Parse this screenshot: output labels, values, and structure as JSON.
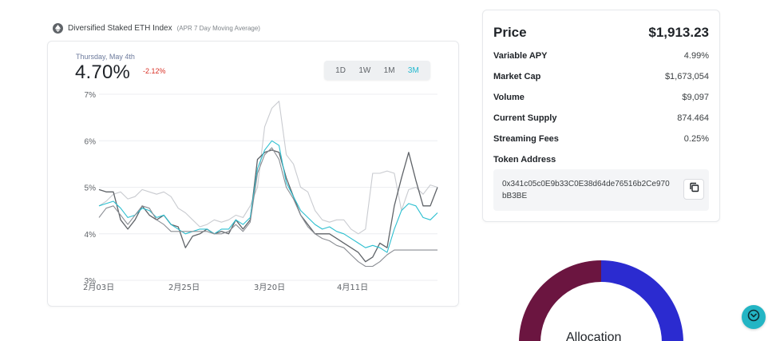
{
  "index": {
    "icon": "eth-icon",
    "name": "Diversified Staked ETH Index",
    "subtitle": "(APR 7 Day Moving Average)"
  },
  "chart": {
    "date": "Thursday, May 4th",
    "value": "4.70%",
    "change": "-2.12%",
    "ranges": [
      "1D",
      "1W",
      "1M",
      "3M"
    ],
    "active_range": "3M"
  },
  "chart_data": {
    "type": "line",
    "ylim": [
      3,
      7
    ],
    "y_ticks": [
      "7%",
      "6%",
      "5%",
      "4%",
      "3%"
    ],
    "x_ticks": [
      "2月03日",
      "2月25日",
      "3月20日",
      "4月11日"
    ],
    "series": [
      {
        "color": "#c9cbd0",
        "values": [
          4.6,
          4.7,
          4.85,
          4.9,
          4.75,
          4.8,
          4.95,
          4.9,
          4.85,
          4.9,
          4.8,
          4.55,
          4.45,
          4.3,
          4.15,
          4.2,
          4.3,
          4.25,
          4.3,
          4.4,
          4.35,
          4.6,
          5.0,
          6.3,
          6.7,
          6.85,
          5.7,
          5.5,
          5.0,
          4.9,
          4.5,
          4.3,
          4.25,
          4.3,
          4.3,
          4.1,
          4.0,
          4.1,
          5.3,
          5.3,
          5.35,
          5.3,
          4.5,
          4.95,
          5.0,
          4.85,
          5.05,
          5.0
        ]
      },
      {
        "color": "#5f6368",
        "values": [
          4.95,
          4.9,
          4.9,
          4.3,
          4.1,
          4.3,
          4.6,
          4.4,
          4.3,
          4.4,
          4.2,
          4.15,
          3.7,
          3.95,
          4.0,
          4.1,
          4.0,
          4.05,
          4.0,
          4.3,
          4.1,
          4.3,
          5.6,
          5.75,
          5.8,
          5.75,
          5.2,
          4.8,
          4.4,
          4.2,
          4.0,
          4.0,
          4.0,
          3.9,
          3.8,
          3.7,
          3.6,
          3.4,
          3.5,
          3.8,
          3.7,
          4.6,
          5.2,
          5.75,
          5.15,
          4.6,
          4.6,
          5.0
        ]
      },
      {
        "color": "#2bbfd0",
        "values": [
          4.6,
          4.65,
          4.7,
          4.55,
          4.35,
          4.4,
          4.55,
          4.5,
          4.35,
          4.4,
          4.2,
          4.1,
          4.0,
          4.05,
          4.1,
          4.1,
          4.0,
          4.1,
          4.1,
          4.3,
          4.2,
          4.35,
          5.4,
          5.8,
          6.0,
          5.9,
          5.1,
          4.8,
          4.5,
          4.35,
          4.2,
          4.1,
          4.15,
          4.05,
          4.0,
          3.9,
          3.8,
          3.7,
          3.75,
          3.7,
          3.6,
          4.1,
          4.5,
          4.65,
          4.6,
          4.35,
          4.3,
          4.45
        ]
      },
      {
        "color": "#8a8d93",
        "values": [
          4.35,
          4.55,
          4.6,
          4.4,
          4.2,
          4.4,
          4.6,
          4.55,
          4.3,
          4.2,
          4.05,
          4.05,
          4.05,
          4.05,
          4.05,
          4.05,
          4.0,
          4.0,
          4.05,
          4.2,
          4.05,
          4.25,
          5.3,
          5.7,
          5.85,
          5.6,
          5.0,
          4.75,
          4.4,
          4.15,
          4.0,
          3.9,
          3.85,
          3.75,
          3.7,
          3.55,
          3.4,
          3.3,
          3.3,
          3.4,
          3.55,
          3.65,
          3.65,
          3.65,
          3.65,
          3.65,
          3.65,
          3.65
        ]
      }
    ]
  },
  "stats": {
    "price_label": "Price",
    "price_value": "$1,913.23",
    "rows": [
      {
        "label": "Variable APY",
        "value": "4.99%"
      },
      {
        "label": "Market Cap",
        "value": "$1,673,054"
      },
      {
        "label": "Volume",
        "value": "$9,097"
      },
      {
        "label": "Current Supply",
        "value": "874.464"
      },
      {
        "label": "Streaming Fees",
        "value": "0.25%"
      }
    ],
    "token_address_label": "Token Address",
    "token_address": "0x341c05c0E9b33C0E38d64de76516b2Ce970bB3BE",
    "copy_icon": "copy-icon"
  },
  "allocation": {
    "label": "Allocation",
    "colors": [
      "#6b1540",
      "#2b2bd0"
    ],
    "fractions": [
      0.5,
      0.5
    ]
  },
  "fab": {
    "icon": "chevron-down-circle-icon",
    "color": "#23b5c4"
  }
}
